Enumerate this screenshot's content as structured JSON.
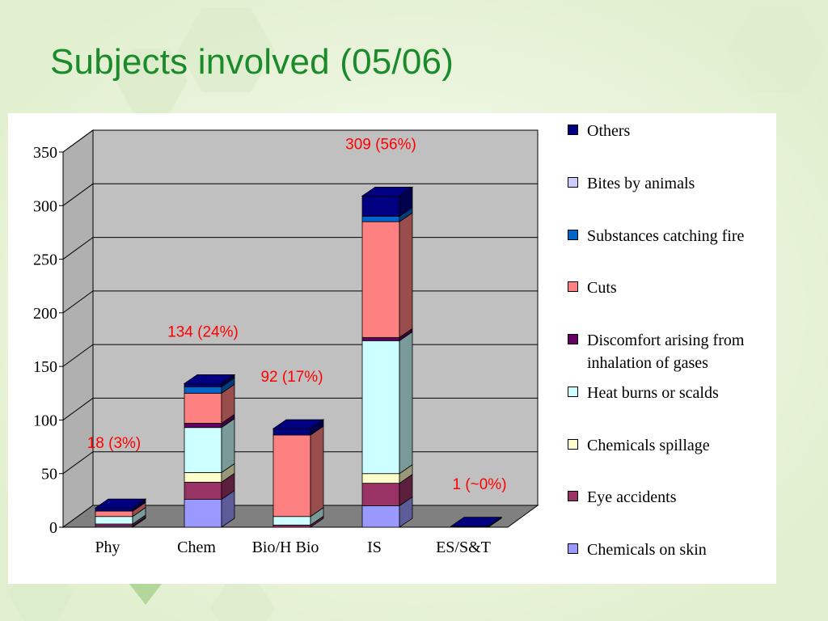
{
  "slide": {
    "title": "Subjects involved (05/06)"
  },
  "chart_data": {
    "type": "bar",
    "stacked": true,
    "three_d": true,
    "categories": [
      "Phy",
      "Chem",
      "Bio/H Bio",
      "IS",
      "ES/S&T"
    ],
    "ylim": [
      0,
      350
    ],
    "yticks": [
      0,
      50,
      100,
      150,
      200,
      250,
      300,
      350
    ],
    "grid": true,
    "legend_position": "right",
    "series": [
      {
        "name": "Chemicals on skin",
        "color": "#9999ff",
        "values": [
          1,
          26,
          0,
          20,
          0
        ]
      },
      {
        "name": "Eye accidents",
        "color": "#993366",
        "values": [
          2,
          16,
          2,
          21,
          0
        ]
      },
      {
        "name": "Chemicals spillage",
        "color": "#ffffcc",
        "values": [
          0,
          9,
          0,
          9,
          0
        ]
      },
      {
        "name": "Heat burns or scalds",
        "color": "#ccffff",
        "values": [
          7,
          42,
          8,
          124,
          0
        ]
      },
      {
        "name": "Discomfort arising from inhalation of gases",
        "color": "#660066",
        "values": [
          0,
          4,
          0,
          3,
          0
        ]
      },
      {
        "name": "Cuts",
        "color": "#ff8080",
        "values": [
          5,
          28,
          76,
          108,
          0
        ]
      },
      {
        "name": "Substances catching fire",
        "color": "#0066cc",
        "values": [
          0,
          6,
          0,
          5,
          0
        ]
      },
      {
        "name": "Bites by animals",
        "color": "#ccccff",
        "values": [
          0,
          0,
          0,
          0,
          0
        ]
      },
      {
        "name": "Others",
        "color": "#000080",
        "values": [
          3,
          3,
          6,
          19,
          1
        ]
      }
    ],
    "annotations": [
      "18 (3%)",
      "134 (24%)",
      "92 (17%)",
      "309 (56%)",
      "1 (~0%)"
    ],
    "annotation_color": "#ff0000",
    "colors": {
      "back_wall": "#c0c0c0",
      "floor": "#808080",
      "gridline": "#000000"
    }
  }
}
